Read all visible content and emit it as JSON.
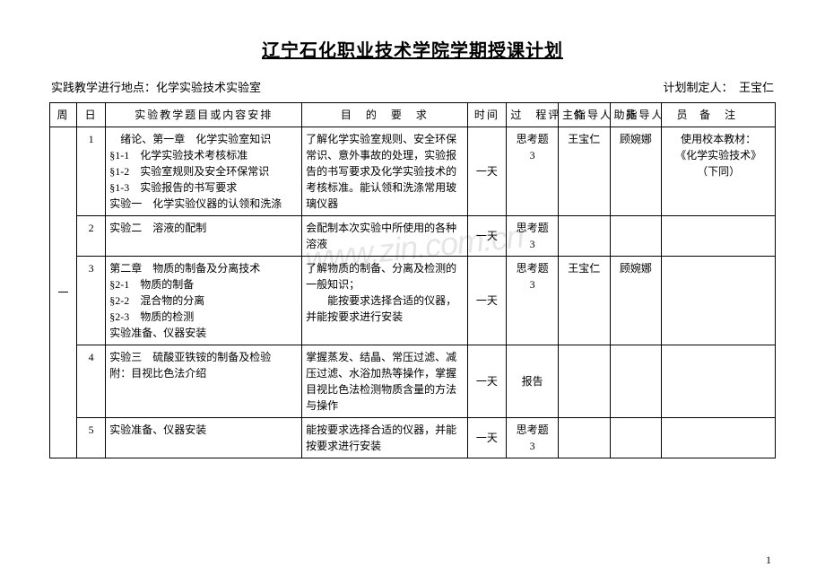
{
  "title": "辽宁石化职业技术学院学期授课计划",
  "meta": {
    "location_label": "实践教学进行地点：",
    "location_value": "化学实验技术实验室",
    "planner_label": "计划制定人：",
    "planner_value": "  王宝仁"
  },
  "headers": {
    "week": "周",
    "day": "日",
    "content": "实验教学题目或内容安排",
    "requirement": "目　的　要　求",
    "time": "时间",
    "evaluation": "过　程评　价",
    "main_instructor": "主指导人　员",
    "assist_instructor": "助指导人　员",
    "note": "备　注"
  },
  "week_label": "一",
  "rows": [
    {
      "day": "1",
      "content_lines": [
        "　绪论、第一章　化学实验室知识",
        "§1-1　化学实验技术考核标准",
        "§1-2　实验室规则及安全环保常识",
        "§1-3　实验报告的书写要求",
        "实验一　化学实验仪器的认领和洗涤"
      ],
      "requirement": "了解化学实验室规则、安全环保常识、意外事故的处理，实验报告的书写要求及化学实验技术的考核标准。能认领和洗涤常用玻璃仪器",
      "time": "一天",
      "evaluation": "思考题3",
      "main": "王宝仁",
      "assist": "顾婉娜",
      "note_lines": [
        "使用校本教材：",
        "《化学实验技术》",
        "（下同）"
      ]
    },
    {
      "day": "2",
      "content_lines": [
        "实验二　溶液的配制"
      ],
      "requirement": "会配制本次实验中所使用的各种溶液",
      "time": "一天",
      "evaluation": "思考题3",
      "main": "",
      "assist": "",
      "note_lines": []
    },
    {
      "day": "3",
      "content_lines": [
        "第二章　物质的制备及分离技术",
        "§2-1　物质的制备",
        "§2-2　混合物的分离",
        "§2-3　物质的检测",
        "实验准备、仪器安装"
      ],
      "requirement": "了解物质的制备、分离及检测的一般知识；\n　　能按要求选择合适的仪器，并能按要求进行安装",
      "time": "一天",
      "evaluation": "思考题3",
      "main": "王宝仁",
      "assist": "顾婉娜",
      "note_lines": []
    },
    {
      "day": "4",
      "content_lines": [
        "实验三　硫酸亚铁铵的制备及检验",
        "附：目视比色法介绍"
      ],
      "requirement": "掌握蒸发、结晶、常压过滤、减压过滤、水浴加热等操作，掌握目视比色法检测物质含量的方法与操作",
      "time": "一天",
      "evaluation": "报告",
      "main": "",
      "assist": "",
      "note_lines": []
    },
    {
      "day": "5",
      "content_lines": [
        "实验准备、仪器安装"
      ],
      "requirement": "能按要求选择合适的仪器，并能按要求进行安装",
      "time": "一天",
      "evaluation": "思考题3",
      "main": "",
      "assist": "",
      "note_lines": []
    }
  ],
  "watermark": "www.zin.com.cn",
  "page_number": "1"
}
